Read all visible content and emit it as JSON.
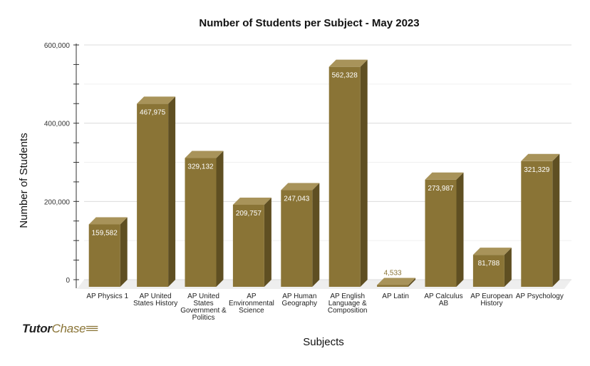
{
  "chart_data": {
    "type": "bar",
    "title": "Number of Students per Subject - May 2023",
    "xlabel": "Subjects",
    "ylabel": "Number of Students",
    "ylim": [
      0,
      600000
    ],
    "yticks": [
      "0",
      "200,000",
      "400,000",
      "600,000"
    ],
    "grid": true,
    "style": "3d",
    "categories": [
      "AP Physics 1",
      "AP United States History",
      "AP United States Government & Politics",
      "AP Environmental Science",
      "AP Human Geography",
      "AP English Language & Composition",
      "AP Latin",
      "AP Calculus AB",
      "AP European History",
      "AP Psychology"
    ],
    "category_lines": [
      [
        "AP Physics 1"
      ],
      [
        "AP United",
        "States History"
      ],
      [
        "AP United",
        "States",
        "Government &",
        "Politics"
      ],
      [
        "AP",
        "Environmental",
        "Science"
      ],
      [
        "AP Human",
        "Geography"
      ],
      [
        "AP English",
        "Language &",
        "Composition"
      ],
      [
        "AP Latin"
      ],
      [
        "AP Calculus",
        "AB"
      ],
      [
        "AP European",
        "History"
      ],
      [
        "AP Psychology"
      ]
    ],
    "values": [
      159582,
      467975,
      329132,
      209757,
      247043,
      562328,
      4533,
      273987,
      81788,
      321329
    ],
    "data_labels": [
      "159,582",
      "467,975",
      "329,132",
      "209,757",
      "247,043",
      "562,328",
      "4,533",
      "273,987",
      "81,788",
      "321,329"
    ],
    "colors": {
      "front": "#8a7436",
      "side": "#5f4f22",
      "top": "#a8935a"
    }
  },
  "logo": {
    "part1": "Tutor",
    "part2": "Chase"
  }
}
